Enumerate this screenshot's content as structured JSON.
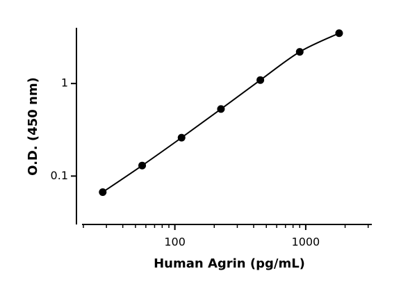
{
  "chart_data": {
    "type": "scatter",
    "x_label": "Human Agrin (pg/mL)",
    "y_label": "O.D. (450 nm)",
    "x": [
      28.1,
      56.25,
      112.5,
      225,
      450,
      900,
      1800
    ],
    "values": [
      0.067,
      0.13,
      0.26,
      0.53,
      1.09,
      2.2,
      3.5
    ],
    "color": "#000000",
    "x_log": true,
    "y_log": true,
    "xlim": [
      20,
      3200
    ],
    "ylim": [
      0.03,
      4
    ],
    "xticks": [
      100,
      1000
    ],
    "yticks": [
      0.1,
      1
    ],
    "xminorticks": [
      20,
      30,
      40,
      50,
      60,
      70,
      80,
      90,
      200,
      300,
      400,
      500,
      600,
      700,
      800,
      900,
      2000,
      3000
    ]
  }
}
